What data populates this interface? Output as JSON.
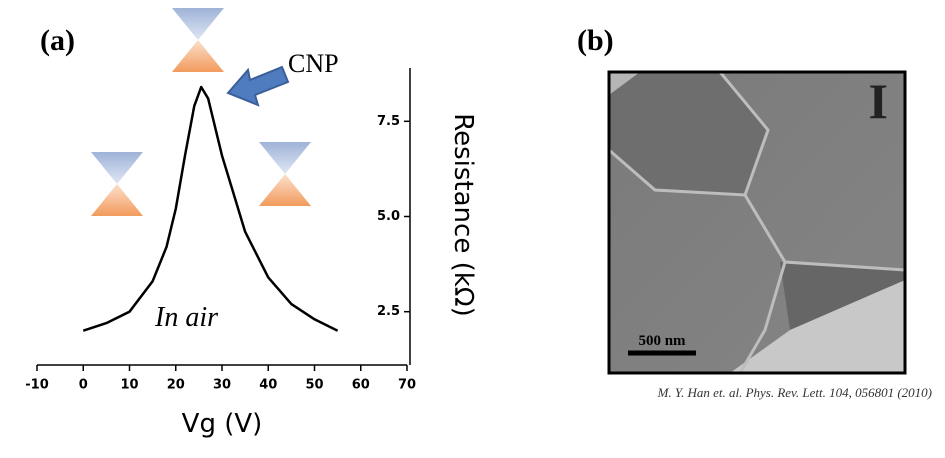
{
  "panel_a": "(a)",
  "panel_b": "(b)",
  "chart_data": {
    "type": "line",
    "x_label": "Vg (V)",
    "y_label": "Resistance (kΩ)",
    "annotations": {
      "peak": "CNP",
      "condition": "In air"
    },
    "x": [
      0,
      5,
      10,
      15,
      18,
      20,
      22,
      24,
      25.5,
      27,
      28,
      30,
      32,
      35,
      40,
      45,
      50,
      55
    ],
    "series": [
      {
        "color": "#000000",
        "values": [
          2.0,
          2.2,
          2.5,
          3.3,
          4.2,
          5.2,
          6.6,
          7.9,
          8.4,
          8.1,
          7.6,
          6.6,
          5.8,
          4.6,
          3.4,
          2.7,
          2.3,
          2.0
        ]
      }
    ],
    "xlim": [
      -10,
      70
    ],
    "xticks": [
      -10,
      0,
      10,
      20,
      30,
      40,
      50,
      60,
      70
    ],
    "ylim": [
      1.1,
      8.9
    ],
    "yticks": [
      2.5,
      {
        "value": 5,
        "label": "5.0"
      },
      7.5
    ]
  },
  "image": {
    "marker": "I",
    "scale_bar": "500 nm",
    "citation": "M. Y. Han et. al. Phys. Rev. Lett. 104, 056801 (2010)"
  }
}
